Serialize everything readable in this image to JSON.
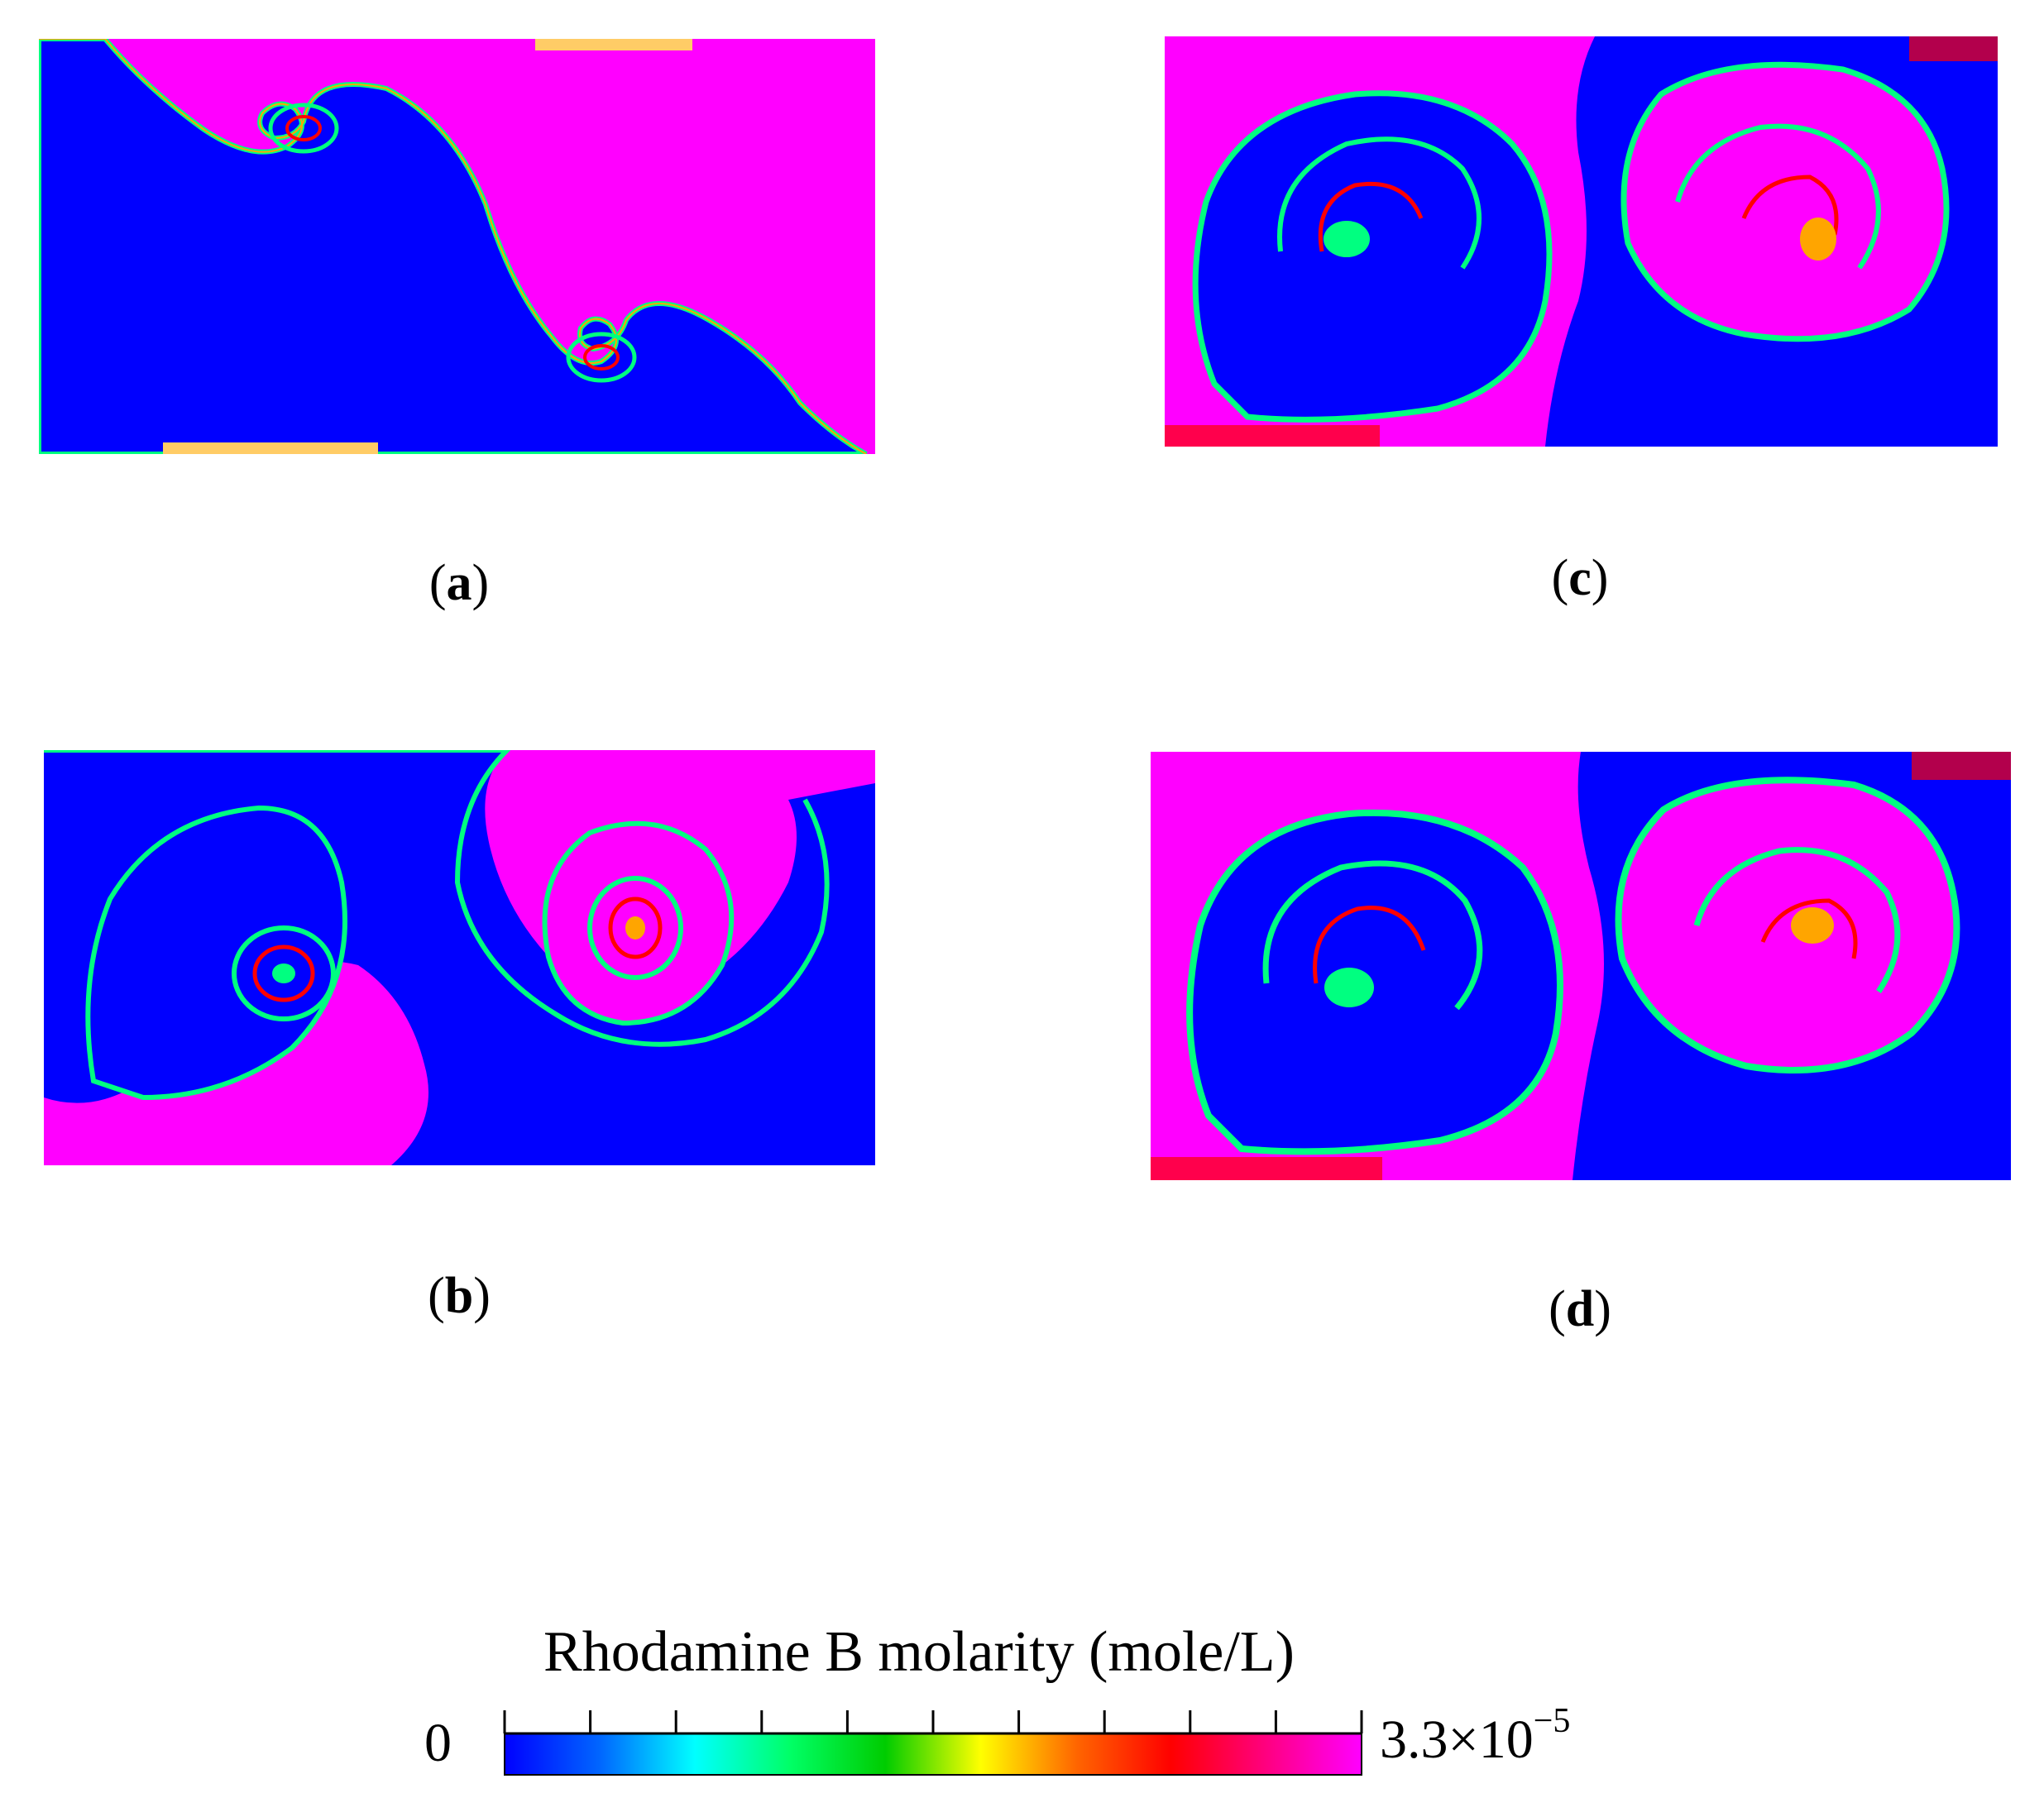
{
  "panels": [
    {
      "label": "a"
    },
    {
      "label": "b"
    },
    {
      "label": "c"
    },
    {
      "label": "d"
    }
  ],
  "colorbar": {
    "title": "Rhodamine B molarity (mole/L)",
    "min_label": "0",
    "max_mantissa": "3.3",
    "max_times": "×",
    "max_base": "10",
    "max_exponent": "−5",
    "tick_count": 9,
    "colors": [
      "#0000ff",
      "#0066ff",
      "#00ffff",
      "#00ff66",
      "#00cc00",
      "#ffff00",
      "#ff6600",
      "#ff0000",
      "#ff0080",
      "#ff00ff"
    ]
  },
  "fluid_colors": {
    "low": "#0000ff",
    "high": "#ff00ff",
    "interface_inner": "#00ff80",
    "interface_outer": "#ffa500"
  }
}
